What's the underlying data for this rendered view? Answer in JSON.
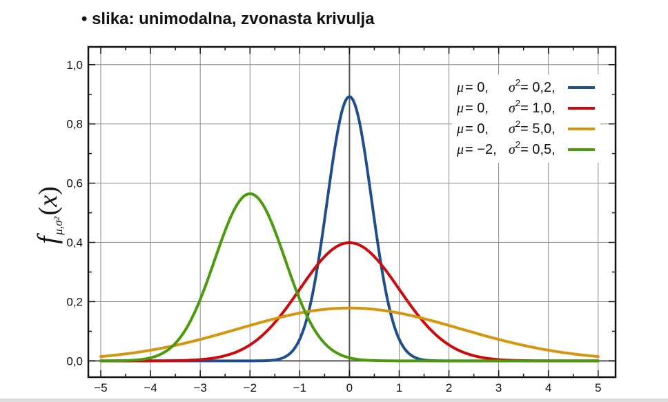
{
  "slide": {
    "bullet": "•",
    "heading": "slika: unimodalna, zvonasta krivulja"
  },
  "chart_data": {
    "type": "line",
    "title": "",
    "ylabel": {
      "f": "f",
      "subscript": "μ,σ²",
      "paren_open": "(",
      "x": "x",
      "paren_close": ")"
    },
    "xlabel": "",
    "xlim": [
      -5.25,
      5.35
    ],
    "ylim": [
      -0.055,
      1.06
    ],
    "x_ticks": [
      -5,
      -4,
      -3,
      -2,
      -1,
      0,
      1,
      2,
      3,
      4,
      5
    ],
    "x_tick_labels": [
      "−5",
      "−4",
      "−3",
      "−2",
      "−1",
      "0",
      "1",
      "2",
      "3",
      "4",
      "5"
    ],
    "y_ticks": [
      0,
      0.2,
      0.4,
      0.6,
      0.8,
      1.0
    ],
    "y_tick_labels": [
      "0,0",
      "0,2",
      "0,4",
      "0,6",
      "0,8",
      "1,0"
    ],
    "grid": true,
    "legend_position": "top-right",
    "x_range": [
      -5,
      5
    ],
    "series": [
      {
        "mu_symbol": "μ",
        "mu_value": "= 0,",
        "sigma_symbol": "σ",
        "sigma_sup": "2",
        "sigma_value": "= 0,2,",
        "mu": 0,
        "variance": 0.2,
        "color": "#1f4e8c"
      },
      {
        "mu_symbol": "μ",
        "mu_value": "= 0,",
        "sigma_symbol": "σ",
        "sigma_sup": "2",
        "sigma_value": "= 1,0,",
        "mu": 0,
        "variance": 1.0,
        "color": "#cc0a0a"
      },
      {
        "mu_symbol": "μ",
        "mu_value": "= 0,",
        "sigma_symbol": "σ",
        "sigma_sup": "2",
        "sigma_value": "= 5,0,",
        "mu": 0,
        "variance": 5.0,
        "color": "#d4950f"
      },
      {
        "mu_symbol": "μ",
        "mu_value": "= −2,",
        "sigma_symbol": "σ",
        "sigma_sup": "2",
        "sigma_value": "= 0,5,",
        "mu": -2,
        "variance": 0.5,
        "color": "#4a9a0c"
      }
    ]
  }
}
